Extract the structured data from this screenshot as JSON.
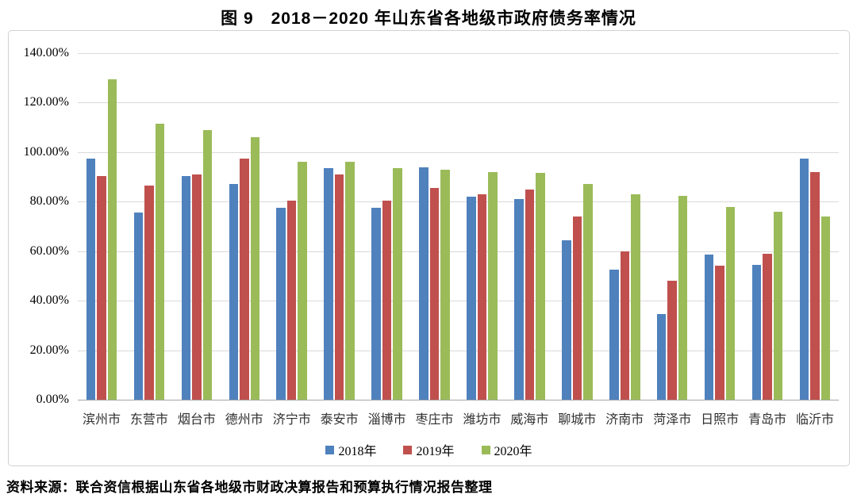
{
  "title": "图 9　2018－2020 年山东省各地级市政府债务率情况",
  "source_note": "资料来源：联合资信根据山东省各地级市财政决算报告和预算执行情况报告整理",
  "colors": {
    "series_2018": "#4F81BD",
    "series_2019": "#C0504D",
    "series_2020": "#9BBB59",
    "gridline": "#D9D9D9",
    "axis_line": "#A6A6A6",
    "frame_border": "#D2D2D2"
  },
  "chart_data": {
    "type": "bar",
    "title": "图 9　2018－2020 年山东省各地级市政府债务率情况",
    "categories": [
      "滨州市",
      "东营市",
      "烟台市",
      "德州市",
      "济宁市",
      "泰安市",
      "淄博市",
      "枣庄市",
      "潍坊市",
      "威海市",
      "聊城市",
      "济南市",
      "菏泽市",
      "日照市",
      "青岛市",
      "临沂市"
    ],
    "series": [
      {
        "name": "2018年",
        "color": "#4F81BD",
        "values": [
          97.5,
          75.5,
          90.5,
          87.0,
          77.5,
          93.5,
          77.5,
          94.0,
          82.0,
          81.0,
          64.5,
          52.5,
          34.5,
          58.5,
          54.5,
          97.5
        ]
      },
      {
        "name": "2019年",
        "color": "#C0504D",
        "values": [
          90.5,
          86.5,
          91.0,
          97.5,
          80.5,
          91.0,
          80.5,
          85.5,
          83.0,
          85.0,
          74.0,
          60.0,
          48.0,
          54.0,
          59.0,
          92.0
        ]
      },
      {
        "name": "2020年",
        "color": "#9BBB59",
        "values": [
          129.5,
          111.5,
          109.0,
          106.0,
          96.0,
          96.0,
          93.5,
          93.0,
          92.0,
          91.5,
          87.0,
          83.0,
          82.5,
          78.0,
          76.0,
          74.0
        ]
      }
    ],
    "ylabel": "",
    "xlabel": "",
    "ylim": [
      0,
      140
    ],
    "y_ticks": [
      "0.00%",
      "20.00%",
      "40.00%",
      "60.00%",
      "80.00%",
      "100.00%",
      "120.00%",
      "140.00%"
    ],
    "y_tick_values": [
      0,
      20,
      40,
      60,
      80,
      100,
      120,
      140
    ],
    "grid": true,
    "legend_position": "bottom"
  }
}
